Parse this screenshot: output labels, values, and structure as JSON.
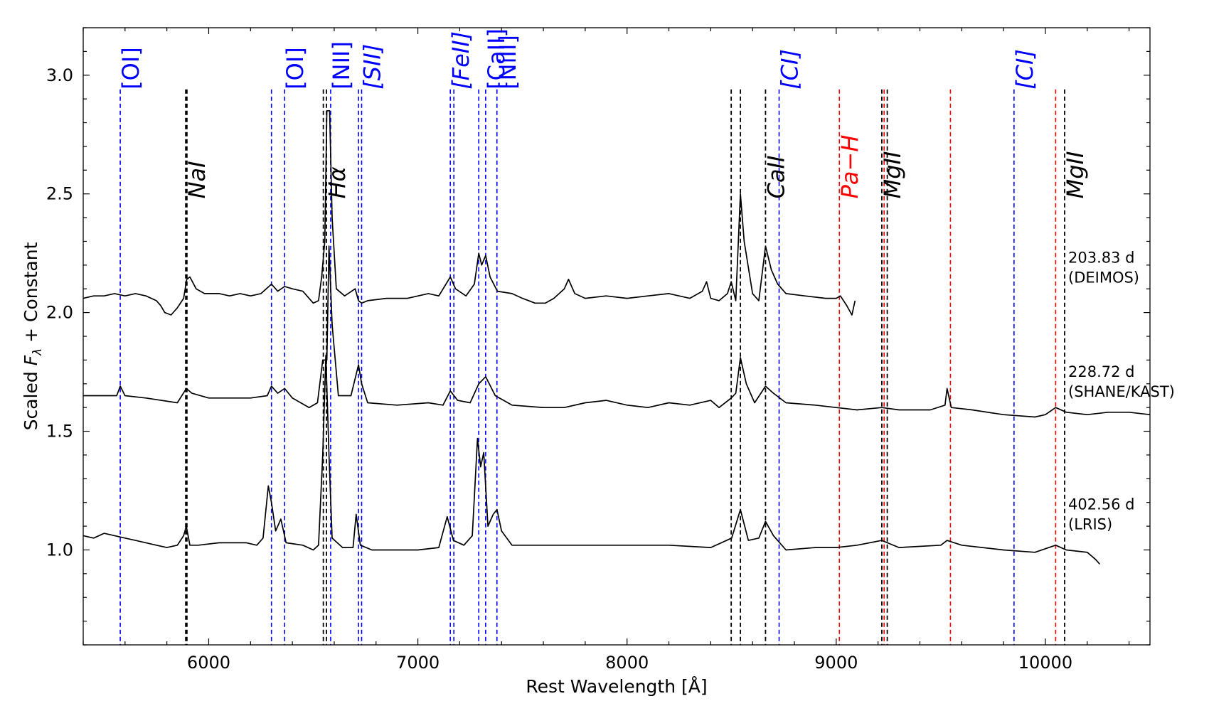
{
  "chart_data": {
    "type": "line",
    "title": "",
    "xlabel": "Rest Wavelength [Å]",
    "ylabel_prefix": "Scaled ",
    "ylabel_symbol": "F",
    "ylabel_subscript": "λ",
    "ylabel_suffix": " + Constant",
    "xlim": [
      5400,
      10500
    ],
    "ylim": [
      0.6,
      3.2
    ],
    "xticks": [
      6000,
      7000,
      8000,
      9000,
      10000
    ],
    "yticks": [
      1.0,
      1.5,
      2.0,
      2.5,
      3.0
    ],
    "ytick_labels": [
      "1.0",
      "1.5",
      "2.0",
      "2.5",
      "3.0"
    ],
    "grid": false,
    "legend": "none",
    "line_labels": [
      {
        "text": "[OI]",
        "x": 5577,
        "color": "#0000ff",
        "italic": false,
        "y": 2.94
      },
      {
        "text": "NaI",
        "x": 5893,
        "color": "#000000",
        "italic": true,
        "y": 2.48
      },
      {
        "text": "[OI]",
        "x": 6363,
        "color": "#0000ff",
        "italic": false,
        "y": 2.94
      },
      {
        "text": "Hα",
        "x": 6563,
        "color": "#000000",
        "italic": true,
        "y": 2.48
      },
      {
        "text": "[NII]",
        "x": 6583,
        "color": "#0000ff",
        "italic": false,
        "y": 2.94
      },
      {
        "text": "[SII]",
        "x": 6731,
        "color": "#0000ff",
        "italic": true,
        "y": 2.94
      },
      {
        "text": "[FeII]",
        "x": 7155,
        "color": "#0000ff",
        "italic": true,
        "y": 2.94
      },
      {
        "text": "[CaII]",
        "x": 7324,
        "color": "#0000ff",
        "italic": false,
        "y": 2.94
      },
      {
        "text": "[NiII]",
        "x": 7378,
        "color": "#0000ff",
        "italic": false,
        "y": 2.94
      },
      {
        "text": "CaII",
        "x": 8662,
        "color": "#000000",
        "italic": true,
        "y": 2.48
      },
      {
        "text": "[CI]",
        "x": 8727,
        "color": "#0000ff",
        "italic": true,
        "y": 2.94
      },
      {
        "text": "Pa−H",
        "x": 9015,
        "color": "#ff0000",
        "italic": true,
        "y": 2.48
      },
      {
        "text": "MgII",
        "x": 9218,
        "color": "#000000",
        "italic": true,
        "y": 2.48
      },
      {
        "text": "[CI]",
        "x": 9850,
        "color": "#0000ff",
        "italic": true,
        "y": 2.94
      },
      {
        "text": "MgII",
        "x": 10092,
        "color": "#000000",
        "italic": true,
        "y": 2.48
      }
    ],
    "vlines_black": [
      5890,
      5896,
      6548,
      6563,
      8498,
      8542,
      8662,
      9218,
      9244,
      10092
    ],
    "vlines_blue": [
      5577,
      6300,
      6363,
      6583,
      6716,
      6731,
      7155,
      7172,
      7291,
      7324,
      7378,
      8727,
      9850
    ],
    "vlines_red": [
      9015,
      9229,
      9546,
      10049
    ],
    "series": [
      {
        "label": "203.83 d",
        "instrument": "(DEIMOS)",
        "label_y": 2.21,
        "points": [
          [
            5400,
            2.06
          ],
          [
            5450,
            2.07
          ],
          [
            5500,
            2.07
          ],
          [
            5550,
            2.08
          ],
          [
            5600,
            2.07
          ],
          [
            5650,
            2.08
          ],
          [
            5700,
            2.07
          ],
          [
            5750,
            2.05
          ],
          [
            5770,
            2.03
          ],
          [
            5790,
            2.0
          ],
          [
            5820,
            1.99
          ],
          [
            5850,
            2.02
          ],
          [
            5880,
            2.06
          ],
          [
            5895,
            2.14
          ],
          [
            5910,
            2.15
          ],
          [
            5940,
            2.1
          ],
          [
            5980,
            2.08
          ],
          [
            6050,
            2.08
          ],
          [
            6100,
            2.07
          ],
          [
            6150,
            2.08
          ],
          [
            6200,
            2.07
          ],
          [
            6250,
            2.08
          ],
          [
            6300,
            2.12
          ],
          [
            6330,
            2.09
          ],
          [
            6363,
            2.11
          ],
          [
            6400,
            2.1
          ],
          [
            6450,
            2.09
          ],
          [
            6500,
            2.04
          ],
          [
            6525,
            2.05
          ],
          [
            6540,
            2.15
          ],
          [
            6555,
            2.3
          ],
          [
            6565,
            2.85
          ],
          [
            6578,
            2.85
          ],
          [
            6590,
            2.4
          ],
          [
            6610,
            2.1
          ],
          [
            6650,
            2.07
          ],
          [
            6700,
            2.1
          ],
          [
            6716,
            2.05
          ],
          [
            6731,
            2.04
          ],
          [
            6760,
            2.05
          ],
          [
            6850,
            2.06
          ],
          [
            6950,
            2.06
          ],
          [
            7050,
            2.08
          ],
          [
            7100,
            2.07
          ],
          [
            7155,
            2.15
          ],
          [
            7180,
            2.1
          ],
          [
            7230,
            2.07
          ],
          [
            7270,
            2.12
          ],
          [
            7291,
            2.25
          ],
          [
            7305,
            2.2
          ],
          [
            7324,
            2.24
          ],
          [
            7345,
            2.15
          ],
          [
            7380,
            2.09
          ],
          [
            7450,
            2.08
          ],
          [
            7500,
            2.06
          ],
          [
            7560,
            2.04
          ],
          [
            7610,
            2.04
          ],
          [
            7650,
            2.06
          ],
          [
            7700,
            2.1
          ],
          [
            7720,
            2.14
          ],
          [
            7750,
            2.08
          ],
          [
            7800,
            2.06
          ],
          [
            7900,
            2.07
          ],
          [
            8000,
            2.06
          ],
          [
            8100,
            2.07
          ],
          [
            8200,
            2.08
          ],
          [
            8300,
            2.06
          ],
          [
            8360,
            2.09
          ],
          [
            8380,
            2.13
          ],
          [
            8400,
            2.06
          ],
          [
            8440,
            2.05
          ],
          [
            8480,
            2.08
          ],
          [
            8498,
            2.13
          ],
          [
            8520,
            2.05
          ],
          [
            8542,
            2.5
          ],
          [
            8560,
            2.3
          ],
          [
            8600,
            2.08
          ],
          [
            8630,
            2.05
          ],
          [
            8662,
            2.28
          ],
          [
            8690,
            2.18
          ],
          [
            8720,
            2.12
          ],
          [
            8760,
            2.08
          ],
          [
            8850,
            2.07
          ],
          [
            8950,
            2.06
          ],
          [
            9000,
            2.06
          ],
          [
            9020,
            2.07
          ],
          [
            9050,
            2.03
          ],
          [
            9075,
            1.99
          ],
          [
            9090,
            2.05
          ]
        ]
      },
      {
        "label": "228.72 d",
        "instrument": "(SHANE/KAST)",
        "label_y": 1.73,
        "points": [
          [
            5400,
            1.65
          ],
          [
            5500,
            1.65
          ],
          [
            5560,
            1.65
          ],
          [
            5577,
            1.69
          ],
          [
            5600,
            1.65
          ],
          [
            5700,
            1.64
          ],
          [
            5850,
            1.62
          ],
          [
            5893,
            1.68
          ],
          [
            5920,
            1.66
          ],
          [
            6000,
            1.64
          ],
          [
            6100,
            1.64
          ],
          [
            6200,
            1.64
          ],
          [
            6280,
            1.65
          ],
          [
            6300,
            1.69
          ],
          [
            6330,
            1.66
          ],
          [
            6363,
            1.68
          ],
          [
            6400,
            1.64
          ],
          [
            6480,
            1.6
          ],
          [
            6520,
            1.62
          ],
          [
            6545,
            1.8
          ],
          [
            6565,
            1.8
          ],
          [
            6575,
            2.28
          ],
          [
            6590,
            1.95
          ],
          [
            6620,
            1.65
          ],
          [
            6680,
            1.65
          ],
          [
            6716,
            1.78
          ],
          [
            6731,
            1.7
          ],
          [
            6760,
            1.62
          ],
          [
            6900,
            1.61
          ],
          [
            7050,
            1.62
          ],
          [
            7120,
            1.61
          ],
          [
            7155,
            1.67
          ],
          [
            7190,
            1.63
          ],
          [
            7250,
            1.62
          ],
          [
            7291,
            1.7
          ],
          [
            7324,
            1.73
          ],
          [
            7370,
            1.65
          ],
          [
            7450,
            1.61
          ],
          [
            7600,
            1.6
          ],
          [
            7700,
            1.6
          ],
          [
            7800,
            1.62
          ],
          [
            7900,
            1.63
          ],
          [
            8000,
            1.61
          ],
          [
            8100,
            1.6
          ],
          [
            8200,
            1.62
          ],
          [
            8300,
            1.61
          ],
          [
            8400,
            1.63
          ],
          [
            8440,
            1.6
          ],
          [
            8498,
            1.64
          ],
          [
            8520,
            1.66
          ],
          [
            8542,
            1.81
          ],
          [
            8570,
            1.7
          ],
          [
            8610,
            1.62
          ],
          [
            8662,
            1.69
          ],
          [
            8700,
            1.66
          ],
          [
            8760,
            1.62
          ],
          [
            8900,
            1.61
          ],
          [
            9000,
            1.6
          ],
          [
            9100,
            1.59
          ],
          [
            9218,
            1.6
          ],
          [
            9300,
            1.59
          ],
          [
            9450,
            1.59
          ],
          [
            9520,
            1.61
          ],
          [
            9530,
            1.68
          ],
          [
            9550,
            1.6
          ],
          [
            9650,
            1.59
          ],
          [
            9800,
            1.57
          ],
          [
            9950,
            1.56
          ],
          [
            10000,
            1.57
          ],
          [
            10049,
            1.6
          ],
          [
            10100,
            1.58
          ],
          [
            10200,
            1.57
          ],
          [
            10300,
            1.58
          ],
          [
            10400,
            1.58
          ],
          [
            10500,
            1.57
          ]
        ]
      },
      {
        "label": "402.56 d",
        "instrument": "(LRIS)",
        "label_y": 1.17,
        "points": [
          [
            5400,
            1.06
          ],
          [
            5450,
            1.05
          ],
          [
            5500,
            1.07
          ],
          [
            5550,
            1.06
          ],
          [
            5600,
            1.05
          ],
          [
            5650,
            1.04
          ],
          [
            5700,
            1.03
          ],
          [
            5750,
            1.02
          ],
          [
            5800,
            1.01
          ],
          [
            5850,
            1.02
          ],
          [
            5880,
            1.06
          ],
          [
            5893,
            1.1
          ],
          [
            5910,
            1.02
          ],
          [
            5950,
            1.02
          ],
          [
            6050,
            1.03
          ],
          [
            6100,
            1.03
          ],
          [
            6180,
            1.03
          ],
          [
            6230,
            1.02
          ],
          [
            6260,
            1.05
          ],
          [
            6285,
            1.27
          ],
          [
            6300,
            1.2
          ],
          [
            6320,
            1.08
          ],
          [
            6345,
            1.13
          ],
          [
            6370,
            1.03
          ],
          [
            6450,
            1.02
          ],
          [
            6500,
            1.0
          ],
          [
            6525,
            1.02
          ],
          [
            6545,
            1.4
          ],
          [
            6560,
            1.82
          ],
          [
            6575,
            1.4
          ],
          [
            6590,
            1.05
          ],
          [
            6640,
            1.01
          ],
          [
            6690,
            1.01
          ],
          [
            6705,
            1.15
          ],
          [
            6725,
            1.02
          ],
          [
            6780,
            1.0
          ],
          [
            7000,
            1.0
          ],
          [
            7100,
            1.01
          ],
          [
            7140,
            1.14
          ],
          [
            7170,
            1.04
          ],
          [
            7220,
            1.02
          ],
          [
            7260,
            1.06
          ],
          [
            7285,
            1.47
          ],
          [
            7300,
            1.35
          ],
          [
            7315,
            1.41
          ],
          [
            7335,
            1.1
          ],
          [
            7360,
            1.15
          ],
          [
            7378,
            1.17
          ],
          [
            7400,
            1.08
          ],
          [
            7450,
            1.02
          ],
          [
            7600,
            1.02
          ],
          [
            7800,
            1.02
          ],
          [
            8000,
            1.02
          ],
          [
            8200,
            1.02
          ],
          [
            8400,
            1.01
          ],
          [
            8500,
            1.05
          ],
          [
            8542,
            1.17
          ],
          [
            8580,
            1.04
          ],
          [
            8630,
            1.05
          ],
          [
            8662,
            1.12
          ],
          [
            8700,
            1.06
          ],
          [
            8760,
            1.0
          ],
          [
            8900,
            1.01
          ],
          [
            9000,
            1.01
          ],
          [
            9100,
            1.02
          ],
          [
            9218,
            1.04
          ],
          [
            9300,
            1.01
          ],
          [
            9500,
            1.02
          ],
          [
            9530,
            1.04
          ],
          [
            9600,
            1.02
          ],
          [
            9800,
            1.0
          ],
          [
            9950,
            0.99
          ],
          [
            10049,
            1.02
          ],
          [
            10100,
            1.0
          ],
          [
            10200,
            0.99
          ],
          [
            10240,
            0.96
          ],
          [
            10260,
            0.94
          ]
        ]
      }
    ]
  }
}
